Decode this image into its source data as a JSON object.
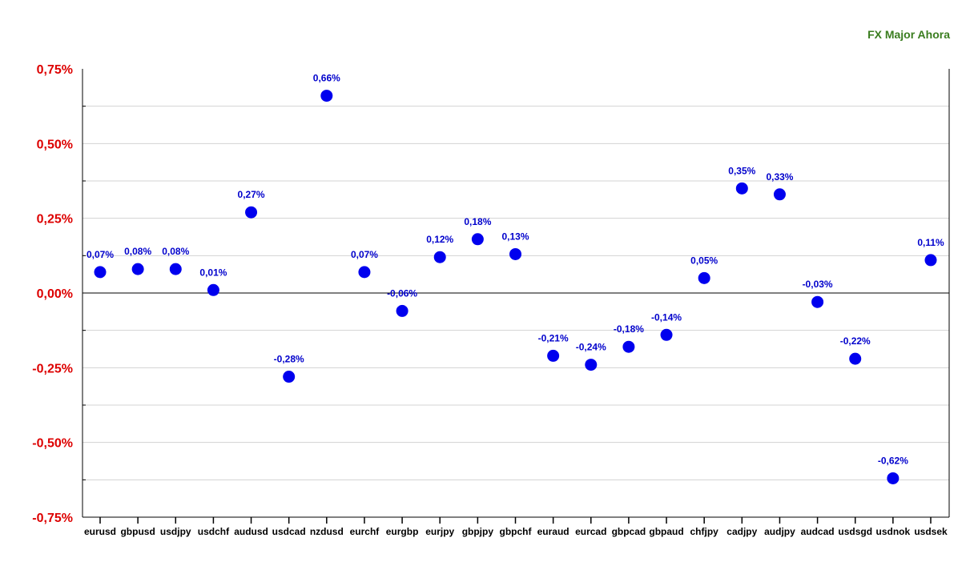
{
  "chart_data": {
    "type": "scatter",
    "legend": {
      "label": "FX Major Ahora",
      "position": "top-right",
      "color": "#3a7d1f"
    },
    "categories": [
      "eurusd",
      "gbpusd",
      "usdjpy",
      "usdchf",
      "audusd",
      "usdcad",
      "nzdusd",
      "eurchf",
      "eurgbp",
      "eurjpy",
      "gbpjpy",
      "gbpchf",
      "euraud",
      "eurcad",
      "gbpcad",
      "gbpaud",
      "chfjpy",
      "cadjpy",
      "audjpy",
      "audcad",
      "usdsgd",
      "usdnok",
      "usdsek"
    ],
    "values": [
      0.07,
      0.08,
      0.08,
      0.01,
      0.27,
      -0.28,
      0.66,
      0.07,
      -0.06,
      0.12,
      0.18,
      0.13,
      -0.21,
      -0.24,
      -0.18,
      -0.14,
      0.05,
      0.35,
      0.33,
      -0.03,
      -0.22,
      -0.62,
      0.11
    ],
    "value_labels": [
      "0,07%",
      "0,08%",
      "0,08%",
      "0,01%",
      "0,27%",
      "-0,28%",
      "0,66%",
      "0,07%",
      "-0,06%",
      "0,12%",
      "0,18%",
      "0,13%",
      "-0,21%",
      "-0,24%",
      "-0,18%",
      "-0,14%",
      "0,05%",
      "0,35%",
      "0,33%",
      "-0,03%",
      "-0,22%",
      "-0,62%",
      "0,11%"
    ],
    "ylim": [
      -0.75,
      0.75
    ],
    "yticks": [
      0.75,
      0.5,
      0.25,
      0.0,
      -0.25,
      -0.5,
      -0.75
    ],
    "ytick_labels": [
      "0,75%",
      "0,50%",
      "0,25%",
      "0,00%",
      "-0,25%",
      "-0,50%",
      "-0,75%"
    ],
    "grid": true,
    "colors": {
      "marker": "#0000ee",
      "data_label": "#0000cc",
      "ytick": "#dd0000",
      "grid": "#d3d3d3",
      "axis": "#000000"
    }
  }
}
